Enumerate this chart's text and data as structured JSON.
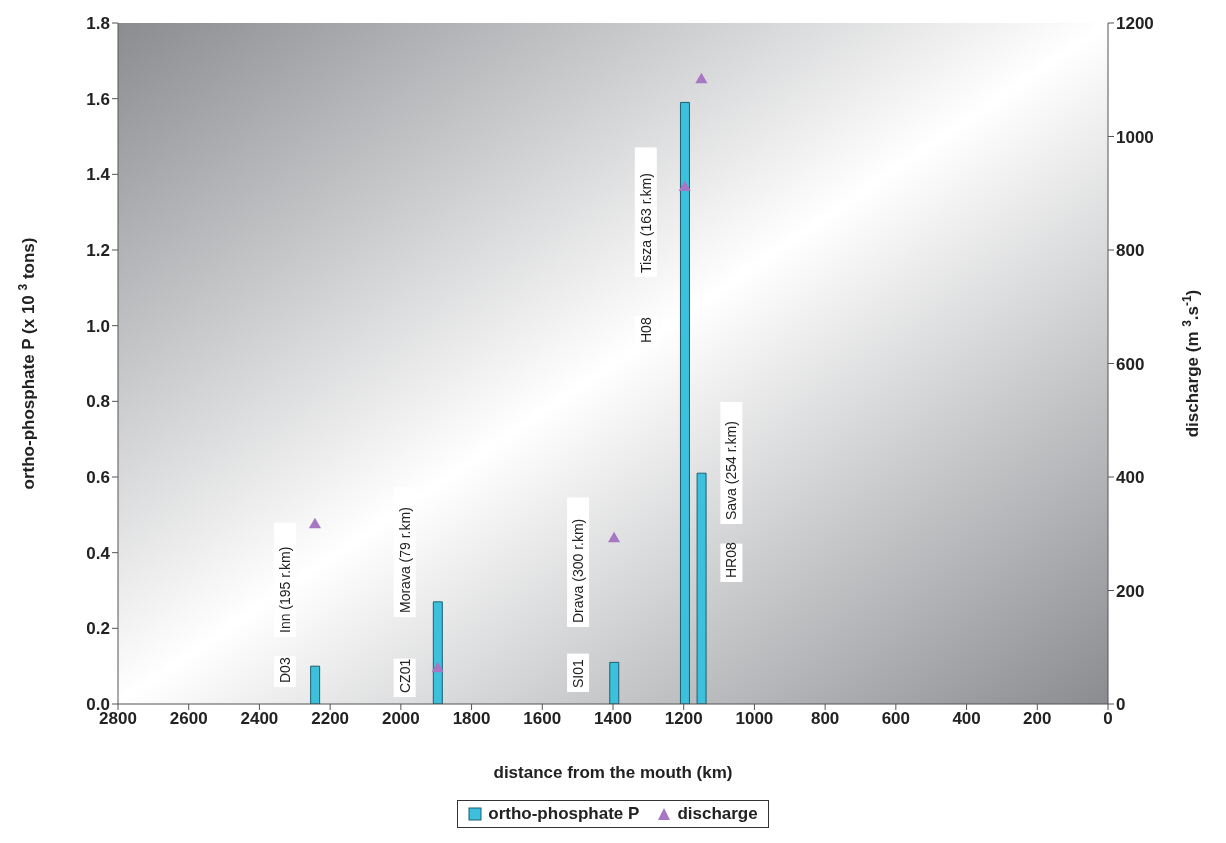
{
  "chart_data": {
    "type": "bar",
    "xlabel": "distance from the mouth (km)",
    "ylabel": "ortho-phosphate P (x 10 $^{3}$ tons)",
    "y2label": "discharge (m $^{3}$.s$^{-1}$)",
    "xlim": [
      2800,
      0
    ],
    "xticks": [
      2800,
      2600,
      2400,
      2200,
      2000,
      1800,
      1600,
      1400,
      1200,
      1000,
      800,
      600,
      400,
      200,
      0
    ],
    "ylim": [
      0,
      1.8
    ],
    "yticks": [
      {
        "value": 0,
        "label": "0.0"
      },
      0.2,
      0.4,
      0.6,
      0.8,
      {
        "value": 1,
        "label": "1.0"
      },
      1.2,
      1.4,
      1.6,
      1.8
    ],
    "y2lim": [
      0,
      1200
    ],
    "y2ticks": [
      0,
      200,
      400,
      600,
      800,
      1000,
      1200
    ],
    "series": [
      {
        "name": "ortho-phosphate P",
        "color": "#3cc0dc",
        "x": [
          2243,
          1896,
          1397,
          1197,
          1150
        ],
        "values": [
          0.1,
          0.27,
          0.11,
          1.59,
          0.61
        ]
      },
      {
        "name": "discharge",
        "type": "scatter",
        "axis": "y2",
        "marker": "triangle",
        "color": "#a777c4",
        "x": [
          2243,
          1896,
          1397,
          1197,
          1150
        ],
        "values": [
          316,
          62,
          291,
          910,
          1100
        ]
      }
    ],
    "annotations": [
      "D03",
      "Inn (195 r.km)",
      "CZ01",
      "Morava (79 r.km)",
      "SI01",
      "Drava (300 r.km)",
      "H08",
      "Tisza (163 r.km)",
      "HR08",
      "Sava (254 r.km)"
    ],
    "legend": "bottom"
  }
}
